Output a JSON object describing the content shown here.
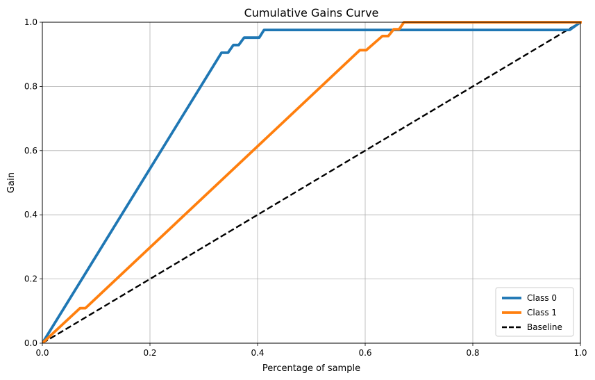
{
  "chart_data": {
    "type": "line",
    "title": "Cumulative Gains Curve",
    "xlabel": "Percentage of sample",
    "ylabel": "Gain",
    "xlim": [
      0,
      1
    ],
    "ylim": [
      0,
      1
    ],
    "xticks": [
      "0.0",
      "0.2",
      "0.4",
      "0.6",
      "0.8",
      "1.0"
    ],
    "yticks": [
      "0.0",
      "0.2",
      "0.4",
      "0.6",
      "0.8",
      "1.0"
    ],
    "grid": true,
    "legend_position": "lower-right",
    "series": [
      {
        "name": "Class 0",
        "color": "#1f77b4",
        "style": "solid",
        "points": [
          [
            0,
            0
          ],
          [
            0.333,
            0.905
          ],
          [
            0.345,
            0.905
          ],
          [
            0.355,
            0.929
          ],
          [
            0.365,
            0.929
          ],
          [
            0.375,
            0.952
          ],
          [
            0.403,
            0.952
          ],
          [
            0.412,
            0.976
          ],
          [
            0.98,
            0.976
          ],
          [
            1.0,
            1.0
          ]
        ]
      },
      {
        "name": "Class 1",
        "color": "#ff7f0e",
        "style": "solid",
        "points": [
          [
            0,
            0
          ],
          [
            0.07,
            0.109
          ],
          [
            0.08,
            0.109
          ],
          [
            0.59,
            0.913
          ],
          [
            0.602,
            0.913
          ],
          [
            0.632,
            0.957
          ],
          [
            0.643,
            0.957
          ],
          [
            0.653,
            0.978
          ],
          [
            0.663,
            0.978
          ],
          [
            0.672,
            1.0
          ],
          [
            1.0,
            1.0
          ]
        ]
      },
      {
        "name": "Baseline",
        "color": "#000000",
        "style": "dashed",
        "points": [
          [
            0,
            0
          ],
          [
            1,
            1
          ]
        ]
      }
    ]
  }
}
